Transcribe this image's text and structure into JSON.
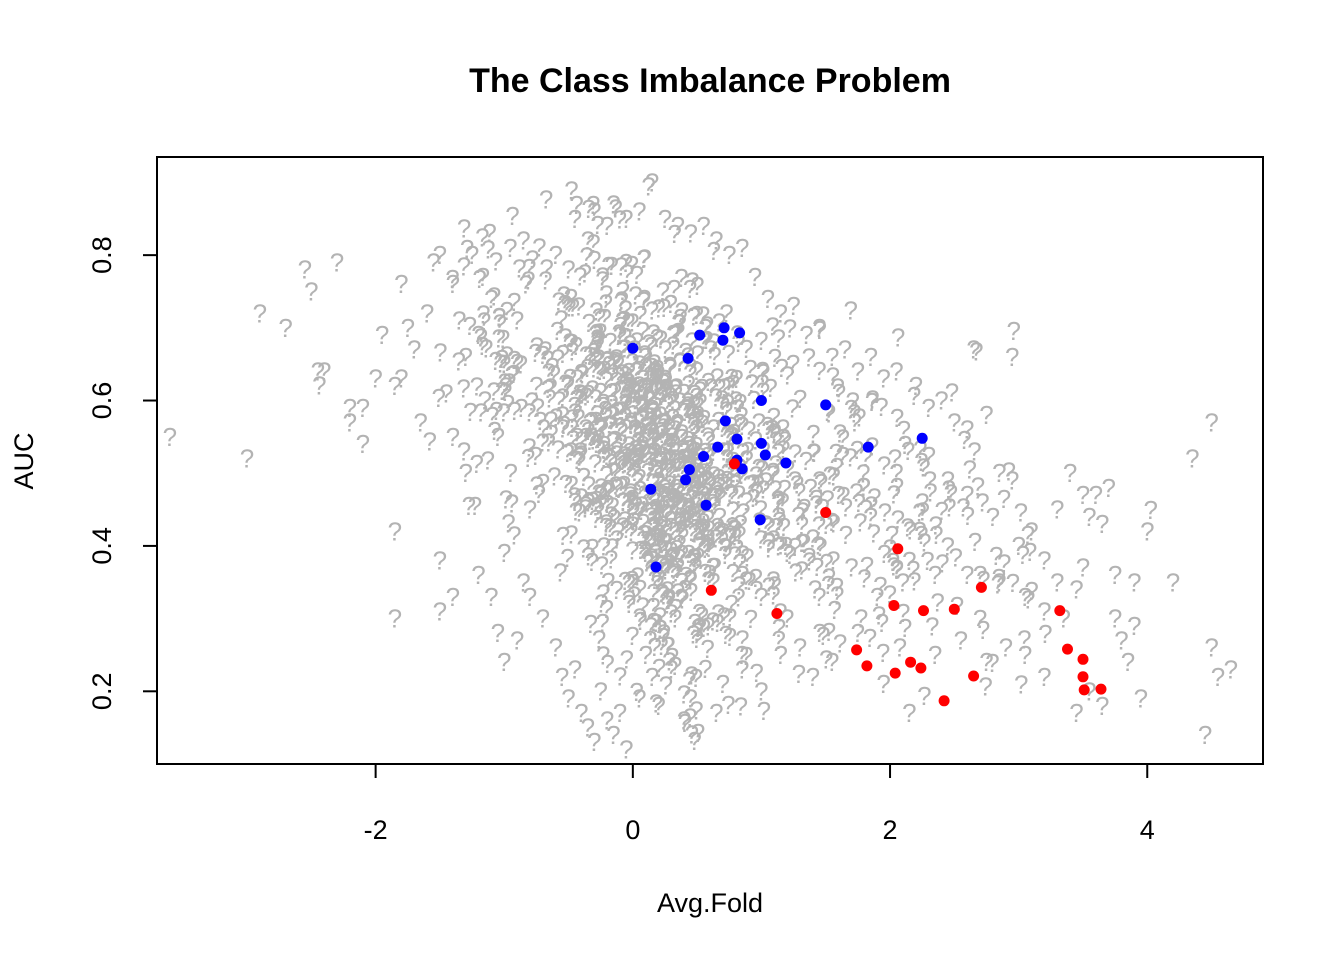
{
  "chart_data": {
    "type": "scatter",
    "title": "The Class Imbalance Problem",
    "xlabel": "Avg.Fold",
    "ylabel": "AUC",
    "xlim": [
      -3.7,
      4.9
    ],
    "ylim": [
      0.1,
      0.935
    ],
    "x_ticks": [
      -2,
      0,
      2,
      4
    ],
    "y_ticks": [
      0.2,
      0.4,
      0.6,
      0.8
    ],
    "x_tick_labels": [
      "-2",
      "0",
      "2",
      "4"
    ],
    "y_tick_labels": [
      "0.2",
      "0.4",
      "0.6",
      "0.8"
    ],
    "grid": false,
    "legend": "none",
    "colors": {
      "unlabeled": "#b3b3b3",
      "blue": "#0000ff",
      "red": "#ff0000"
    },
    "unlabeled_marker": "?",
    "series": [
      {
        "marker": "?",
        "color": "#b3b3b3",
        "points": [
          [
            -3.6,
            0.55
          ],
          [
            -3.0,
            0.52
          ],
          [
            -2.9,
            0.72
          ],
          [
            -2.7,
            0.7
          ],
          [
            -2.55,
            0.78
          ],
          [
            -2.5,
            0.75
          ],
          [
            -2.45,
            0.64
          ],
          [
            -2.4,
            0.64
          ],
          [
            -2.3,
            0.79
          ],
          [
            -2.2,
            0.59
          ],
          [
            -2.2,
            0.57
          ],
          [
            -2.1,
            0.59
          ],
          [
            -2.1,
            0.54
          ],
          [
            -2.0,
            0.63
          ],
          [
            -1.95,
            0.69
          ],
          [
            -1.85,
            0.62
          ],
          [
            -1.8,
            0.63
          ],
          [
            -1.8,
            0.76
          ],
          [
            -1.75,
            0.7
          ],
          [
            -1.7,
            0.67
          ],
          [
            -1.65,
            0.57
          ],
          [
            -1.6,
            0.72
          ],
          [
            -1.55,
            0.79
          ],
          [
            -1.5,
            0.8
          ],
          [
            -1.45,
            0.61
          ],
          [
            -1.4,
            0.76
          ],
          [
            -1.4,
            0.55
          ],
          [
            -1.35,
            0.71
          ],
          [
            -1.3,
            0.66
          ],
          [
            -1.3,
            0.5
          ],
          [
            -1.25,
            0.8
          ],
          [
            -1.2,
            0.69
          ],
          [
            -1.15,
            0.6
          ],
          [
            -1.1,
            0.74
          ],
          [
            -1.05,
            0.55
          ],
          [
            -1.0,
            0.65
          ],
          [
            -0.95,
            0.5
          ],
          [
            -0.9,
            0.71
          ],
          [
            -0.85,
            0.82
          ],
          [
            -0.85,
            0.35
          ],
          [
            -0.8,
            0.45
          ],
          [
            -0.75,
            0.62
          ],
          [
            -1.85,
            0.3
          ],
          [
            -1.85,
            0.42
          ],
          [
            -1.5,
            0.31
          ],
          [
            -1.5,
            0.38
          ],
          [
            -1.4,
            0.33
          ],
          [
            -1.2,
            0.36
          ],
          [
            -1.1,
            0.33
          ],
          [
            -1.05,
            0.28
          ],
          [
            -1.0,
            0.39
          ],
          [
            -0.9,
            0.27
          ],
          [
            -1.0,
            0.24
          ],
          [
            -0.8,
            0.33
          ],
          [
            -0.7,
            0.3
          ],
          [
            -0.6,
            0.26
          ],
          [
            -0.55,
            0.22
          ],
          [
            -0.5,
            0.19
          ],
          [
            -0.45,
            0.23
          ],
          [
            -0.4,
            0.17
          ],
          [
            -0.35,
            0.15
          ],
          [
            -0.3,
            0.13
          ],
          [
            -0.25,
            0.2
          ],
          [
            -0.2,
            0.16
          ],
          [
            -0.15,
            0.14
          ],
          [
            -0.1,
            0.17
          ],
          [
            -0.05,
            0.12
          ],
          [
            0.05,
            0.19
          ],
          [
            0.1,
            0.25
          ],
          [
            0.15,
            0.22
          ],
          [
            0.2,
            0.18
          ],
          [
            0.3,
            0.23
          ],
          [
            -0.6,
            0.8
          ],
          [
            -0.5,
            0.78
          ],
          [
            -0.45,
            0.85
          ],
          [
            -0.35,
            0.82
          ],
          [
            -0.3,
            0.86
          ],
          [
            -0.2,
            0.84
          ],
          [
            -0.15,
            0.87
          ],
          [
            -0.05,
            0.85
          ],
          [
            0.05,
            0.86
          ],
          [
            0.15,
            0.9
          ],
          [
            0.25,
            0.85
          ],
          [
            0.35,
            0.84
          ],
          [
            0.45,
            0.83
          ],
          [
            0.55,
            0.84
          ],
          [
            0.65,
            0.82
          ],
          [
            0.75,
            0.8
          ],
          [
            0.85,
            0.81
          ],
          [
            0.95,
            0.77
          ],
          [
            1.05,
            0.74
          ],
          [
            1.15,
            0.72
          ],
          [
            1.25,
            0.73
          ],
          [
            1.35,
            0.69
          ],
          [
            1.45,
            0.7
          ],
          [
            1.55,
            0.66
          ],
          [
            1.65,
            0.67
          ],
          [
            1.75,
            0.64
          ],
          [
            1.85,
            0.66
          ],
          [
            1.95,
            0.63
          ],
          [
            2.05,
            0.64
          ],
          [
            2.2,
            0.62
          ],
          [
            2.3,
            0.59
          ],
          [
            2.4,
            0.6
          ],
          [
            2.5,
            0.57
          ],
          [
            2.6,
            0.56
          ],
          [
            2.75,
            0.58
          ],
          [
            2.85,
            0.5
          ],
          [
            2.95,
            0.49
          ],
          [
            3.1,
            0.42
          ],
          [
            2.65,
            0.67
          ],
          [
            2.95,
            0.66
          ],
          [
            2.6,
            0.47
          ],
          [
            2.8,
            0.44
          ],
          [
            3.0,
            0.4
          ],
          [
            2.7,
            0.36
          ],
          [
            2.85,
            0.35
          ],
          [
            3.05,
            0.33
          ],
          [
            3.2,
            0.31
          ],
          [
            3.2,
            0.38
          ],
          [
            3.3,
            0.35
          ],
          [
            3.35,
            0.3
          ],
          [
            3.45,
            0.34
          ],
          [
            3.5,
            0.37
          ],
          [
            3.55,
            0.44
          ],
          [
            3.6,
            0.47
          ],
          [
            3.65,
            0.43
          ],
          [
            3.7,
            0.48
          ],
          [
            3.75,
            0.3
          ],
          [
            3.8,
            0.27
          ],
          [
            3.85,
            0.24
          ],
          [
            3.9,
            0.29
          ],
          [
            3.95,
            0.19
          ],
          [
            3.75,
            0.36
          ],
          [
            3.9,
            0.35
          ],
          [
            4.0,
            0.42
          ],
          [
            4.2,
            0.35
          ],
          [
            3.3,
            0.45
          ],
          [
            3.4,
            0.5
          ],
          [
            3.5,
            0.47
          ],
          [
            4.35,
            0.52
          ],
          [
            4.5,
            0.57
          ],
          [
            4.5,
            0.26
          ],
          [
            4.55,
            0.22
          ],
          [
            4.65,
            0.23
          ],
          [
            4.45,
            0.14
          ],
          [
            3.45,
            0.17
          ],
          [
            3.55,
            0.2
          ],
          [
            3.65,
            0.18
          ],
          [
            3.2,
            0.22
          ],
          [
            3.05,
            0.25
          ],
          [
            2.9,
            0.26
          ],
          [
            2.75,
            0.24
          ],
          [
            2.55,
            0.27
          ],
          [
            2.35,
            0.25
          ],
          [
            2.15,
            0.17
          ],
          [
            1.95,
            0.21
          ],
          [
            1.75,
            0.28
          ],
          [
            1.55,
            0.24
          ],
          [
            1.4,
            0.22
          ],
          [
            1.3,
            0.26
          ],
          [
            1.15,
            0.25
          ],
          [
            1.0,
            0.2
          ],
          [
            0.85,
            0.23
          ],
          [
            0.7,
            0.21
          ],
          [
            0.65,
            0.17
          ],
          [
            0.45,
            0.19
          ],
          [
            1.2,
            0.3
          ],
          [
            1.45,
            0.33
          ],
          [
            1.7,
            0.37
          ],
          [
            1.9,
            0.33
          ],
          [
            2.1,
            0.35
          ],
          [
            2.35,
            0.36
          ],
          [
            2.6,
            0.36
          ],
          [
            2.25,
            0.46
          ],
          [
            2.45,
            0.49
          ],
          [
            2.05,
            0.5
          ],
          [
            1.85,
            0.44
          ],
          [
            1.6,
            0.47
          ],
          [
            1.4,
            0.41
          ],
          [
            1.2,
            0.39
          ],
          [
            1.0,
            0.33
          ],
          [
            0.85,
            0.36
          ]
        ]
      },
      {
        "color": "#0000ff",
        "points": [
          [
            0.0,
            0.672
          ],
          [
            0.52,
            0.69
          ],
          [
            0.71,
            0.7
          ],
          [
            0.83,
            0.693
          ],
          [
            0.7,
            0.683
          ],
          [
            0.43,
            0.658
          ],
          [
            1.0,
            0.6
          ],
          [
            1.5,
            0.594
          ],
          [
            0.72,
            0.572
          ],
          [
            0.81,
            0.547
          ],
          [
            0.66,
            0.536
          ],
          [
            1.0,
            0.541
          ],
          [
            0.55,
            0.523
          ],
          [
            0.81,
            0.518
          ],
          [
            1.03,
            0.525
          ],
          [
            1.19,
            0.514
          ],
          [
            0.44,
            0.505
          ],
          [
            0.85,
            0.506
          ],
          [
            0.41,
            0.491
          ],
          [
            0.14,
            0.478
          ],
          [
            1.83,
            0.536
          ],
          [
            2.25,
            0.548
          ],
          [
            0.57,
            0.456
          ],
          [
            0.99,
            0.436
          ],
          [
            0.18,
            0.371
          ]
        ]
      },
      {
        "color": "#ff0000",
        "points": [
          [
            0.79,
            0.513
          ],
          [
            1.5,
            0.446
          ],
          [
            2.06,
            0.396
          ],
          [
            0.61,
            0.339
          ],
          [
            1.12,
            0.307
          ],
          [
            2.03,
            0.318
          ],
          [
            2.26,
            0.311
          ],
          [
            2.5,
            0.313
          ],
          [
            2.71,
            0.343
          ],
          [
            3.32,
            0.311
          ],
          [
            1.74,
            0.257
          ],
          [
            1.82,
            0.235
          ],
          [
            2.04,
            0.225
          ],
          [
            2.16,
            0.24
          ],
          [
            2.24,
            0.232
          ],
          [
            2.65,
            0.221
          ],
          [
            2.42,
            0.187
          ],
          [
            3.38,
            0.258
          ],
          [
            3.5,
            0.244
          ],
          [
            3.5,
            0.22
          ],
          [
            3.51,
            0.202
          ],
          [
            3.64,
            0.203
          ]
        ]
      }
    ]
  }
}
